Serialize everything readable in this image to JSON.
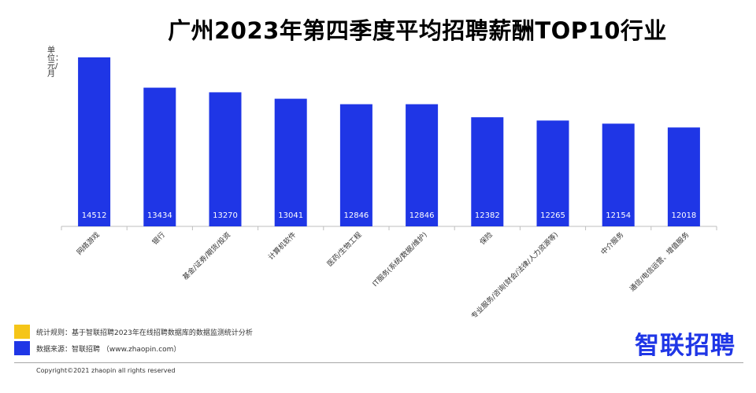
{
  "chart_data": {
    "type": "bar",
    "title": "广州2023年第四季度平均招聘薪酬TOP10行业",
    "ylabel": "单位：元/月",
    "xlabel": "",
    "categories": [
      "网络游戏",
      "银行",
      "基金/证券/期货/投资",
      "计算机软件",
      "医药/生物工程",
      "IT服务(系统/数据/维护)",
      "保险",
      "专业服务/咨询(财会/法律/人力资源等)",
      "中介服务",
      "通信/电信运营、增值服务"
    ],
    "values": [
      14512,
      13434,
      13270,
      13041,
      12846,
      12846,
      12382,
      12265,
      12154,
      12018
    ],
    "ylim": [
      8500,
      14512
    ],
    "colors": {
      "bar": "#1f36e6",
      "label": "#ffffff"
    }
  },
  "legend": {
    "rule_label": "统计规则：基于智联招聘2023年在线招聘数据库的数据监测统计分析",
    "source_label": "数据来源：智联招聘 （www.zhaopin.com）",
    "rule_color": "#f5c518",
    "source_color": "#1f36e6"
  },
  "logo_text": "智联招聘",
  "copyright": "Copyright©2021 zhaopin all rights reserved"
}
